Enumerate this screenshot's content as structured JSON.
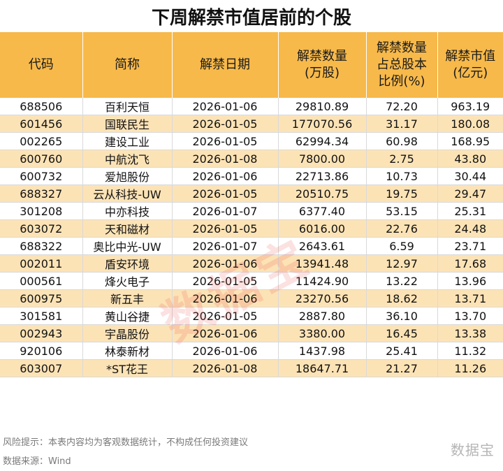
{
  "title": "下周解禁市值居前的个股",
  "headers": [
    "代码",
    "简称",
    "解禁日期",
    "解禁数量\n(万股)",
    "解禁数量\n占总股本\n比例(%)",
    "解禁市值\n(亿元)"
  ],
  "rows": [
    [
      "688506",
      "百利天恒",
      "2026-01-06",
      "29810.89",
      "72.20",
      "963.19"
    ],
    [
      "601456",
      "国联民生",
      "2026-01-05",
      "177070.56",
      "31.17",
      "180.08"
    ],
    [
      "002265",
      "建设工业",
      "2026-01-05",
      "62994.34",
      "60.98",
      "168.95"
    ],
    [
      "600760",
      "中航沈飞",
      "2026-01-08",
      "7800.00",
      "2.75",
      "43.80"
    ],
    [
      "600732",
      "爱旭股份",
      "2026-01-06",
      "22713.86",
      "10.73",
      "30.44"
    ],
    [
      "688327",
      "云从科技-UW",
      "2026-01-05",
      "20510.75",
      "19.75",
      "29.47"
    ],
    [
      "301208",
      "中亦科技",
      "2026-01-07",
      "6377.40",
      "53.15",
      "25.31"
    ],
    [
      "603072",
      "天和磁材",
      "2026-01-05",
      "6016.00",
      "22.76",
      "24.48"
    ],
    [
      "688322",
      "奥比中光-UW",
      "2026-01-07",
      "2643.61",
      "6.59",
      "23.71"
    ],
    [
      "002011",
      "盾安环境",
      "2026-01-06",
      "13941.48",
      "12.97",
      "17.68"
    ],
    [
      "000561",
      "烽火电子",
      "2026-01-05",
      "11424.90",
      "13.22",
      "13.96"
    ],
    [
      "600975",
      "新五丰",
      "2026-01-06",
      "23270.56",
      "18.62",
      "13.71"
    ],
    [
      "301581",
      "黄山谷捷",
      "2026-01-05",
      "2887.80",
      "36.10",
      "13.70"
    ],
    [
      "002943",
      "宇晶股份",
      "2026-01-06",
      "3380.00",
      "16.45",
      "13.38"
    ],
    [
      "920106",
      "林泰新材",
      "2026-01-06",
      "1437.98",
      "25.41",
      "11.32"
    ],
    [
      "603007",
      "*ST花王",
      "2026-01-08",
      "18647.71",
      "21.27",
      "11.26"
    ]
  ],
  "footer": {
    "risk_note": "风险提示：本表内容均为客观数据统计，不构成任何投资建议",
    "source": "数据来源：Wind",
    "brand": "数据宝"
  },
  "watermark": "数据宝",
  "colors": {
    "header_bg": "#f7b94a",
    "stripe_bg": "#fce3b6"
  }
}
